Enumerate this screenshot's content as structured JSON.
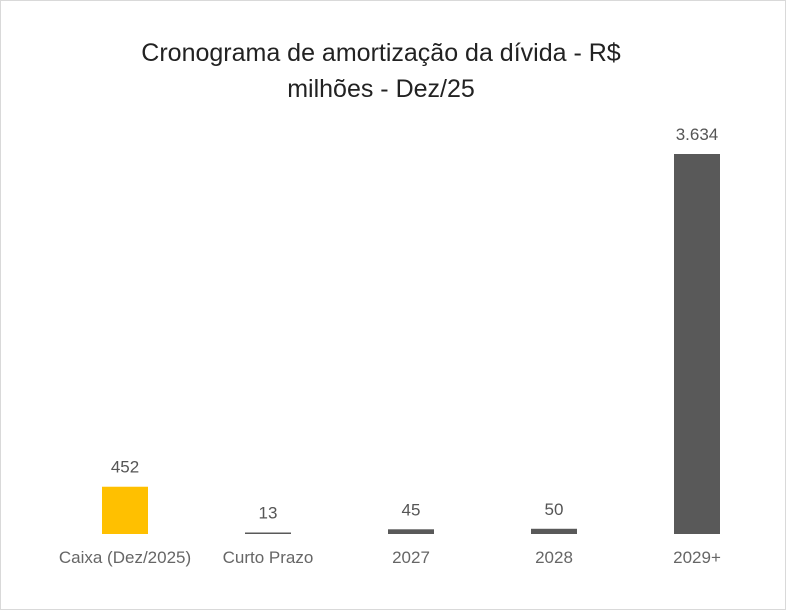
{
  "chart_data": {
    "type": "bar",
    "title_line1": "Cronograma de amortização da dívida - R$",
    "title_line2": "milhões - Dez/25",
    "categories": [
      "Caixa (Dez/2025)",
      "Curto Prazo",
      "2027",
      "2028",
      "2029+"
    ],
    "values": [
      452,
      13,
      45,
      50,
      3634
    ],
    "value_labels": [
      "452",
      "13",
      "45",
      "50",
      "3.634"
    ],
    "colors": [
      "#FFC000",
      "#595959",
      "#595959",
      "#595959",
      "#595959"
    ],
    "ylim": [
      0,
      3634
    ],
    "grid": false,
    "legend": "none"
  }
}
